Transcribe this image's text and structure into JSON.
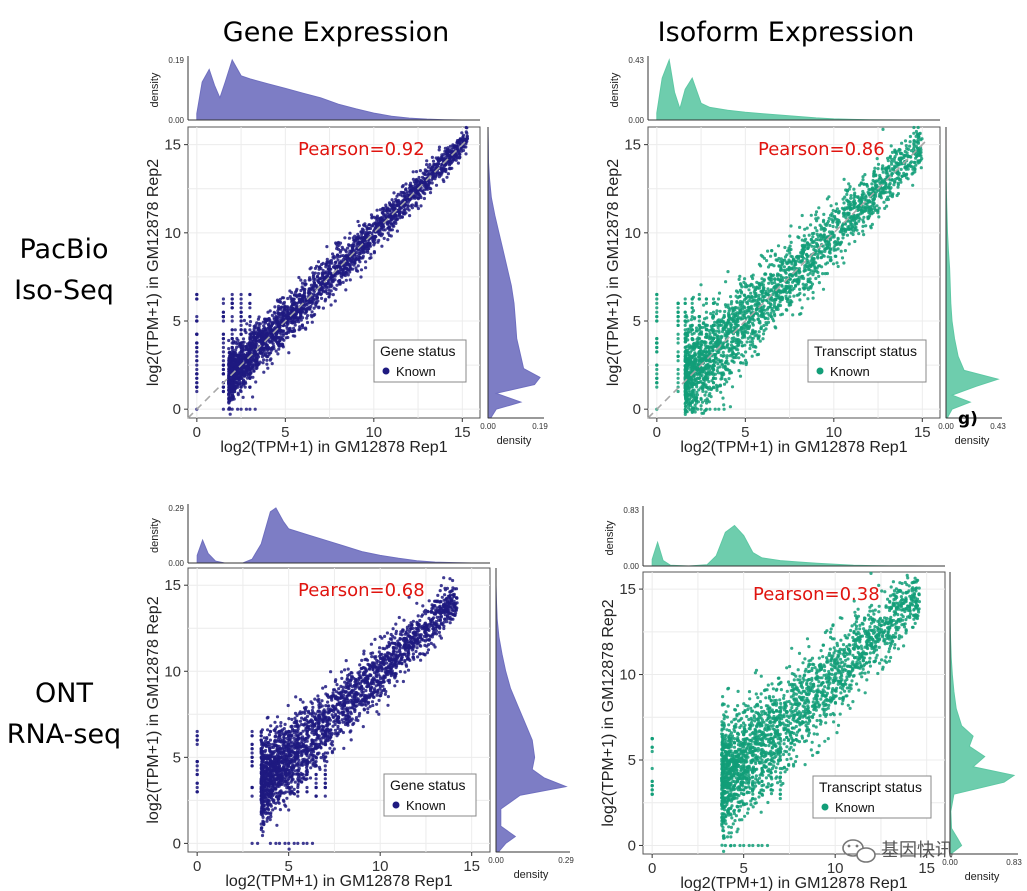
{
  "column_titles": [
    "Gene Expression",
    "Isoform Expression"
  ],
  "row_labels": [
    [
      "PacBio",
      "Iso-Seq"
    ],
    [
      "ONT",
      "RNA-seq"
    ]
  ],
  "watermark": "基因快讯",
  "artifact_text": "g)",
  "colors": {
    "gene": "#1f1a80",
    "gene_density": "#6f6fbf",
    "isoform": "#129e78",
    "isoform_density": "#5ec8a4",
    "pearson": "#e0140f"
  },
  "chart_data": [
    {
      "type": "scatter",
      "name": "PacBio Iso-Seq Gene Expression",
      "pearson_label": "Pearson=0.92",
      "xlabel": "log2(TPM+1) in GM12878 Rep1",
      "ylabel": "log2(TPM+1) in GM12878 Rep2",
      "xlim": [
        -0.5,
        16
      ],
      "ylim": [
        -0.5,
        16
      ],
      "xticks": [
        0,
        5,
        10,
        15
      ],
      "yticks": [
        0,
        5,
        10,
        15
      ],
      "legend": {
        "title": "Gene status",
        "item": "Known",
        "position": "bottom-right"
      },
      "color": "#1f1a80",
      "density_color": "#6f6fbf",
      "diagonal": true,
      "grid": true,
      "top_density": {
        "ymax": 0.19,
        "ticks": [
          "0.00",
          "0.19"
        ],
        "label": "density",
        "x": [
          0,
          0.3,
          0.7,
          1,
          1.3,
          1.6,
          2,
          2.5,
          3,
          4,
          5,
          6,
          7,
          8,
          9,
          10,
          11,
          12,
          13,
          14,
          15,
          16
        ],
        "y": [
          0.02,
          0.12,
          0.16,
          0.11,
          0.07,
          0.12,
          0.19,
          0.14,
          0.13,
          0.115,
          0.1,
          0.085,
          0.07,
          0.05,
          0.035,
          0.022,
          0.012,
          0.006,
          0.003,
          0.001,
          0,
          0
        ]
      },
      "right_density": {
        "xmax": 0.19,
        "ticks": [
          "0.00",
          "0.19"
        ],
        "label": "density",
        "y": [
          -0.5,
          0,
          0.4,
          0.9,
          1.4,
          1.8,
          2.3,
          3,
          4,
          5,
          6,
          7,
          8,
          9,
          10,
          11,
          12,
          13,
          14,
          15,
          16
        ],
        "v": [
          0.01,
          0.03,
          0.12,
          0.03,
          0.17,
          0.19,
          0.13,
          0.12,
          0.105,
          0.1,
          0.095,
          0.085,
          0.07,
          0.055,
          0.04,
          0.025,
          0.012,
          0.006,
          0.002,
          0.001,
          0
        ]
      },
      "points_summary": "dense cloud along y=x from ~2 to ~15; vertical strips at x=0, 1.5, 2, 2.5, 3; discrete horizontal bands at low y"
    },
    {
      "type": "scatter",
      "name": "PacBio Iso-Seq Isoform Expression",
      "pearson_label": "Pearson=0.86",
      "xlabel": "log2(TPM+1) in GM12878 Rep1",
      "ylabel": "log2(TPM+1) in GM12878 Rep2",
      "xlim": [
        -0.5,
        16
      ],
      "ylim": [
        -0.5,
        16
      ],
      "xticks": [
        0,
        5,
        10,
        15
      ],
      "yticks": [
        0,
        5,
        10,
        15
      ],
      "legend": {
        "title": "Transcript status",
        "item": "Known",
        "position": "bottom-right"
      },
      "color": "#129e78",
      "density_color": "#5ec8a4",
      "diagonal": true,
      "grid": true,
      "top_density": {
        "ymax": 0.43,
        "ticks": [
          "0.00",
          "0.43"
        ],
        "label": "density",
        "x": [
          0,
          0.3,
          0.7,
          1,
          1.3,
          1.6,
          2,
          2.5,
          3,
          4,
          5,
          6,
          7,
          8,
          9,
          10,
          11,
          12,
          13,
          14,
          15,
          16
        ],
        "y": [
          0.05,
          0.3,
          0.43,
          0.2,
          0.08,
          0.22,
          0.3,
          0.12,
          0.09,
          0.07,
          0.055,
          0.045,
          0.035,
          0.025,
          0.015,
          0.008,
          0.004,
          0.002,
          0.001,
          0,
          0,
          0
        ]
      },
      "right_density": {
        "xmax": 0.43,
        "ticks": [
          "0.00",
          "0.43"
        ],
        "label": "density",
        "y": [
          -0.5,
          0,
          0.4,
          0.8,
          1.3,
          1.7,
          2.2,
          3,
          4,
          5,
          6,
          7,
          8,
          9,
          10,
          11,
          12,
          13,
          14,
          15,
          16
        ],
        "v": [
          0.01,
          0.05,
          0.2,
          0.05,
          0.25,
          0.43,
          0.15,
          0.1,
          0.07,
          0.05,
          0.04,
          0.035,
          0.03,
          0.02,
          0.012,
          0.008,
          0.004,
          0.002,
          0.001,
          0,
          0
        ]
      },
      "points_summary": "cloud along y=x from ~2 to ~15 with wider spread; vertical strips at low x"
    },
    {
      "type": "scatter",
      "name": "ONT RNA-seq Gene Expression",
      "pearson_label": "Pearson=0.68",
      "xlabel": "log2(TPM+1) in GM12878 Rep1",
      "ylabel": "log2(TPM+1) in GM12878 Rep2",
      "xlim": [
        -0.5,
        16
      ],
      "ylim": [
        -0.5,
        16
      ],
      "xticks": [
        0,
        5,
        10,
        15
      ],
      "yticks": [
        0,
        5,
        10,
        15
      ],
      "legend": {
        "title": "Gene status",
        "item": "Known",
        "position": "bottom-right"
      },
      "color": "#1f1a80",
      "density_color": "#6f6fbf",
      "diagonal": false,
      "grid": true,
      "top_density": {
        "ymax": 0.29,
        "ticks": [
          "0.00",
          "0.29"
        ],
        "label": "density",
        "x": [
          0,
          0.3,
          0.6,
          1,
          1.5,
          2,
          2.5,
          3,
          3.5,
          4,
          4.3,
          4.7,
          5,
          6,
          7,
          8,
          9,
          10,
          11,
          12,
          13,
          14,
          15,
          16
        ],
        "y": [
          0.04,
          0.12,
          0.05,
          0.01,
          0,
          0,
          0,
          0.02,
          0.1,
          0.27,
          0.29,
          0.22,
          0.18,
          0.15,
          0.12,
          0.09,
          0.06,
          0.04,
          0.025,
          0.012,
          0.005,
          0.002,
          0,
          0
        ]
      },
      "right_density": {
        "xmax": 0.29,
        "ticks": [
          "0.00",
          "0.29"
        ],
        "label": "density",
        "y": [
          -0.5,
          0,
          0.4,
          1,
          2,
          2.8,
          3.3,
          3.8,
          4.3,
          5,
          6,
          7,
          8,
          9,
          10,
          11,
          12,
          13,
          14,
          15,
          16
        ],
        "v": [
          0.01,
          0.04,
          0.08,
          0.02,
          0.02,
          0.1,
          0.29,
          0.2,
          0.15,
          0.16,
          0.15,
          0.12,
          0.09,
          0.06,
          0.04,
          0.025,
          0.012,
          0.005,
          0.002,
          0,
          0
        ]
      },
      "points_summary": "cloud along y=x from ~4 to ~14; sparse points at x=0 (y 3 to 6); vertical strips from x=3 to 7; row at y=0"
    },
    {
      "type": "scatter",
      "name": "ONT RNA-seq Isoform Expression",
      "pearson_label": "Pearson=0.38",
      "xlabel": "log2(TPM+1) in GM12878 Rep1",
      "ylabel": "log2(TPM+1) in GM12878 Rep2",
      "xlim": [
        -0.5,
        16
      ],
      "ylim": [
        -0.5,
        16
      ],
      "xticks": [
        0,
        5,
        10,
        15
      ],
      "yticks": [
        0,
        5,
        10,
        15
      ],
      "legend": {
        "title": "Transcript status",
        "item": "Known",
        "position": "bottom-right"
      },
      "color": "#129e78",
      "density_color": "#5ec8a4",
      "diagonal": false,
      "grid": true,
      "top_density": {
        "ymax": 0.83,
        "ticks": [
          "0.00",
          "0.83"
        ],
        "label": "density",
        "x": [
          0,
          0.3,
          0.6,
          1,
          2,
          3,
          3.5,
          4,
          4.5,
          5,
          5.5,
          6,
          7,
          8,
          9,
          10,
          11,
          12,
          13,
          14,
          15,
          16
        ],
        "y": [
          0.1,
          0.35,
          0.08,
          0.01,
          0,
          0.02,
          0.15,
          0.5,
          0.6,
          0.45,
          0.2,
          0.12,
          0.08,
          0.06,
          0.04,
          0.025,
          0.012,
          0.006,
          0.002,
          0.001,
          0,
          0
        ]
      },
      "right_density": {
        "xmax": 0.83,
        "ticks": [
          "0.00",
          "0.83"
        ],
        "label": "density",
        "y": [
          -0.5,
          0,
          0.4,
          1,
          2,
          3,
          3.7,
          4.1,
          4.6,
          5.2,
          5.8,
          6.4,
          7,
          8,
          9,
          10,
          11,
          12,
          13,
          14,
          15,
          16
        ],
        "v": [
          0.01,
          0.15,
          0.1,
          0.02,
          0.01,
          0.05,
          0.7,
          0.83,
          0.3,
          0.45,
          0.25,
          0.3,
          0.15,
          0.08,
          0.05,
          0.03,
          0.015,
          0.008,
          0.003,
          0.001,
          0,
          0
        ]
      },
      "points_summary": "cloud along y=x from ~4 to ~14.5; points at x=0 (y 3.5 to 6.5); vertical strips from x=4 to 7; row at y=0"
    }
  ]
}
